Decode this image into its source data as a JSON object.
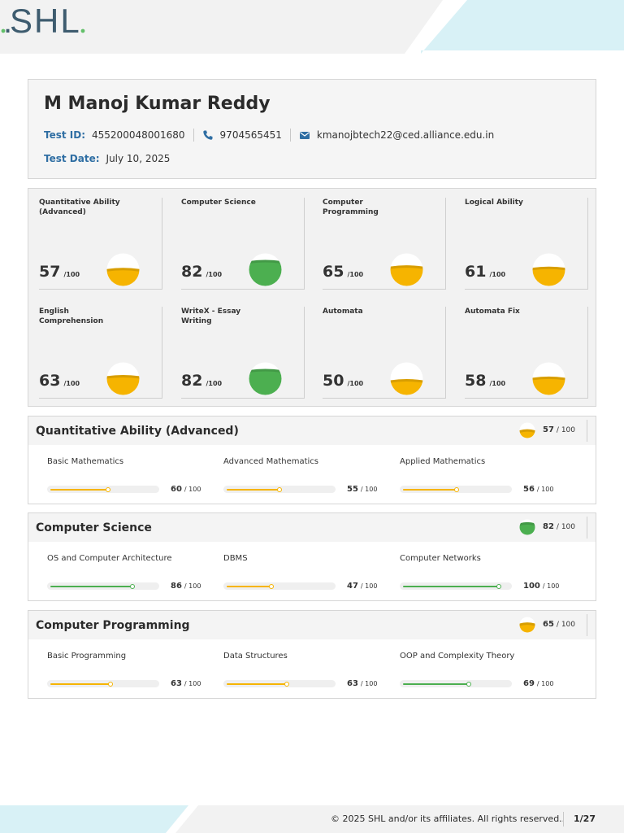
{
  "brand": {
    "logo_text": "SHL",
    "logo_dot": "."
  },
  "colors": {
    "accent_blue": "#2f6ea3",
    "yellow": "#f6b400",
    "green": "#4caf50",
    "logo": "#3e5c6f",
    "logo_dot": "#63c06a",
    "band_cyan": "#d8f1f6"
  },
  "candidate": {
    "name": "M Manoj Kumar Reddy",
    "test_id_label": "Test ID:",
    "test_id": "455200048001680",
    "phone_icon": "phone-icon",
    "phone": "9704565451",
    "email_icon": "mail-icon",
    "email": "kmanojbtech22@ced.alliance.edu.in",
    "test_date_label": "Test Date:",
    "test_date": "July 10, 2025"
  },
  "scores": [
    {
      "title": "Quantitative Ability (Advanced)",
      "score": "57",
      "out_of": "/100",
      "level": 0.57,
      "status": "yellow"
    },
    {
      "title": "Computer Science",
      "score": "82",
      "out_of": "/100",
      "level": 0.82,
      "status": "green"
    },
    {
      "title": "Computer Programming",
      "score": "65",
      "out_of": "/100",
      "level": 0.65,
      "status": "yellow"
    },
    {
      "title": "Logical Ability",
      "score": "61",
      "out_of": "/100",
      "level": 0.61,
      "status": "yellow"
    },
    {
      "title": "English Comprehension",
      "score": "63",
      "out_of": "/100",
      "level": 0.63,
      "status": "yellow"
    },
    {
      "title": "WriteX - Essay Writing",
      "score": "82",
      "out_of": "/100",
      "level": 0.82,
      "status": "green"
    },
    {
      "title": "Automata",
      "score": "50",
      "out_of": "/100",
      "level": 0.5,
      "status": "yellow"
    },
    {
      "title": "Automata Fix",
      "score": "58",
      "out_of": "/100",
      "level": 0.58,
      "status": "yellow"
    }
  ],
  "sections": [
    {
      "title": "Quantitative Ability (Advanced)",
      "score": "57",
      "out_of": "/ 100",
      "level": 0.57,
      "status": "yellow",
      "subs": [
        {
          "label": "Basic Mathematics",
          "score": "60",
          "out_of": "/ 100",
          "value": 0.6,
          "status": "yellow"
        },
        {
          "label": "Advanced Mathematics",
          "score": "55",
          "out_of": "/ 100",
          "value": 0.55,
          "status": "yellow"
        },
        {
          "label": "Applied Mathematics",
          "score": "56",
          "out_of": "/ 100",
          "value": 0.56,
          "status": "yellow"
        }
      ]
    },
    {
      "title": "Computer Science",
      "score": "82",
      "out_of": "/ 100",
      "level": 0.82,
      "status": "green",
      "subs": [
        {
          "label": "OS and Computer Architecture",
          "score": "86",
          "out_of": "/ 100",
          "value": 0.86,
          "status": "green"
        },
        {
          "label": "DBMS",
          "score": "47",
          "out_of": "/ 100",
          "value": 0.47,
          "status": "yellow"
        },
        {
          "label": "Computer Networks",
          "score": "100",
          "out_of": "/ 100",
          "value": 1.0,
          "status": "green"
        }
      ]
    },
    {
      "title": "Computer Programming",
      "score": "65",
      "out_of": "/ 100",
      "level": 0.65,
      "status": "yellow",
      "subs": [
        {
          "label": "Basic Programming",
          "score": "63",
          "out_of": "/ 100",
          "value": 0.63,
          "status": "yellow"
        },
        {
          "label": "Data Structures",
          "score": "63",
          "out_of": "/ 100",
          "value": 0.63,
          "status": "yellow"
        },
        {
          "label": "OOP and Complexity Theory",
          "score": "69",
          "out_of": "/ 100",
          "value": 0.69,
          "status": "green"
        }
      ]
    }
  ],
  "footer": {
    "copyright": "© 2025 SHL and/or its affiliates. All rights reserved..",
    "page": "1/27"
  }
}
